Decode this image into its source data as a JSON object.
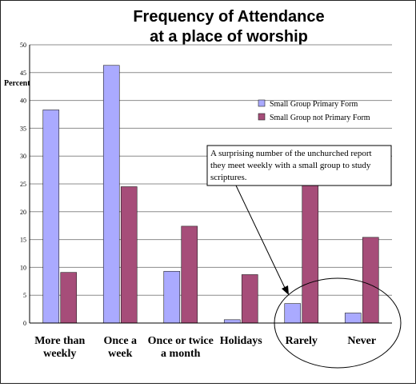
{
  "chart_data": {
    "type": "bar",
    "title_lines": [
      "Frequency of Attendance",
      "at a place of worship"
    ],
    "ylabel": "Percent",
    "xlabel": "",
    "ylim": [
      0,
      50
    ],
    "yticks": [
      "0",
      "5",
      "10",
      "15",
      "20",
      "25",
      "30",
      "35",
      "40",
      "45",
      "50"
    ],
    "grid": true,
    "legend_position": "top-right",
    "categories": [
      [
        "More than",
        "weekly"
      ],
      [
        "Once a",
        "week"
      ],
      [
        "Once or twice",
        "a month"
      ],
      [
        "Holidays"
      ],
      [
        "Rarely"
      ],
      [
        "Never"
      ]
    ],
    "series": [
      {
        "name": "Small Group Primary Form",
        "color": "#aaaaff",
        "values": [
          38.3,
          46.3,
          9.3,
          0.6,
          3.5,
          1.8
        ]
      },
      {
        "name": "Small Group not Primary Form",
        "color": "#a64d79",
        "values": [
          9.1,
          24.5,
          17.4,
          8.7,
          24.9,
          15.4
        ]
      }
    ],
    "annotation": {
      "lines": [
        "A surprising number of the unchurched report",
        "they meet weekly with a small group to study",
        "scriptures."
      ],
      "highlight_categories": [
        "Rarely",
        "Never"
      ]
    }
  }
}
